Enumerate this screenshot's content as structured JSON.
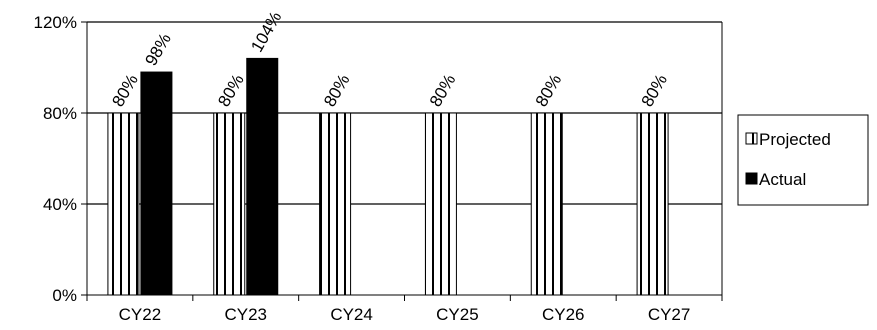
{
  "chart_data": {
    "type": "bar",
    "categories": [
      "CY22",
      "CY23",
      "CY24",
      "CY25",
      "CY26",
      "CY27"
    ],
    "series": [
      {
        "name": "Projected",
        "values": [
          80,
          80,
          80,
          80,
          80,
          80
        ],
        "labels": [
          "80%",
          "80%",
          "80%",
          "80%",
          "80%",
          "80%"
        ],
        "color": "#ffffff",
        "pattern": "vertical-stripes"
      },
      {
        "name": "Actual",
        "values": [
          98,
          104,
          null,
          null,
          null,
          null
        ],
        "labels": [
          "98%",
          "104%",
          null,
          null,
          null,
          null
        ],
        "color": "#000000"
      }
    ],
    "yticks": [
      "0%",
      "40%",
      "80%",
      "120%"
    ],
    "ytick_values": [
      0,
      40,
      80,
      120
    ],
    "ylim": [
      0,
      120
    ],
    "grid": true,
    "legend": "right",
    "title": "",
    "xlabel": "",
    "ylabel": ""
  }
}
